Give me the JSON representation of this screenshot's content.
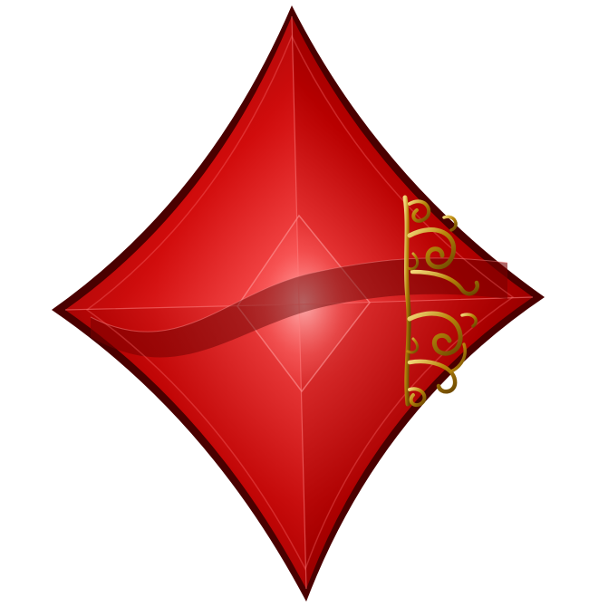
{
  "artwork": {
    "subject": "diamond-suit",
    "colors": {
      "background": "#ffffff",
      "red_light": "#ff6a6a",
      "red_mid": "#d40b0b",
      "red_dark": "#7a0000",
      "red_deep": "#3a0000",
      "gold_light": "#f3d77a",
      "gold_mid": "#b8860b",
      "gold_dark": "#5a3b00"
    },
    "icons": [
      "diamond-suit-icon",
      "gold-filigree-ornament-icon"
    ]
  }
}
